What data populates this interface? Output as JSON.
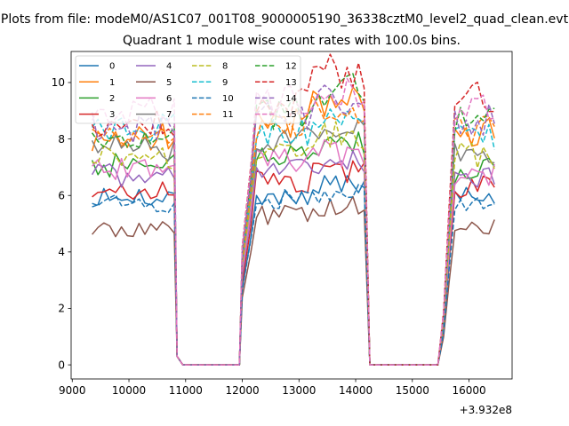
{
  "chart_data": {
    "type": "line",
    "suptitle": "Plots from file: modeM0/AS1C07_001T08_9000005190_36338cztM0_level2_quad_clean.evt",
    "title": "Quadrant 1 module wise count rates with 100.0s bins.",
    "xlabel": "",
    "ylabel": "",
    "x_offset_label": "+3.932e8",
    "x_offset": 393200000,
    "xlim": [
      8980,
      16760
    ],
    "ylim": [
      -0.5,
      11.1
    ],
    "xticks": [
      9000,
      10000,
      11000,
      12000,
      13000,
      14000,
      15000,
      16000
    ],
    "yticks": [
      0,
      2,
      4,
      6,
      8,
      10
    ],
    "legend_position": "upper-left",
    "segments": [
      {
        "start": 9350,
        "end": 10800,
        "count": 15
      },
      {
        "start": 10850,
        "end": 10950,
        "count": 2,
        "fixed": [
          0.3,
          0
        ]
      },
      {
        "start": 11050,
        "end": 11950,
        "count": 10,
        "fixed": "zero"
      },
      {
        "start": 12000,
        "end": 12150,
        "count": 2,
        "ramp": [
          0.45,
          0.75
        ]
      },
      {
        "start": 12250,
        "end": 14150,
        "count": 20
      },
      {
        "start": 14250,
        "end": 15450,
        "count": 13,
        "fixed": "zero"
      },
      {
        "start": 15550,
        "end": 15650,
        "count": 2,
        "ramp": [
          0.2,
          0.6
        ]
      },
      {
        "start": 15750,
        "end": 16450,
        "count": 8
      }
    ],
    "series": [
      {
        "name": "0",
        "color": "#1f77b4",
        "dash": "solid",
        "levels": [
          5.9,
          6.0,
          6.4,
          6.1
        ]
      },
      {
        "name": "1",
        "color": "#ff7f0e",
        "dash": "solid",
        "levels": [
          8.1,
          8.6,
          9.3,
          8.2
        ]
      },
      {
        "name": "2",
        "color": "#2ca02c",
        "dash": "solid",
        "levels": [
          7.1,
          7.4,
          7.8,
          6.9
        ]
      },
      {
        "name": "3",
        "color": "#d62728",
        "dash": "solid",
        "levels": [
          6.1,
          6.5,
          6.8,
          6.3
        ]
      },
      {
        "name": "4",
        "color": "#9467bd",
        "dash": "solid",
        "levels": [
          6.7,
          7.0,
          7.2,
          6.6
        ]
      },
      {
        "name": "5",
        "color": "#8c564b",
        "dash": "solid",
        "levels": [
          4.8,
          5.3,
          5.6,
          4.9
        ]
      },
      {
        "name": "6",
        "color": "#e377c2",
        "dash": "solid",
        "levels": [
          6.9,
          7.3,
          7.5,
          6.8
        ]
      },
      {
        "name": "7",
        "color": "#7f7f7f",
        "dash": "solid",
        "levels": [
          7.7,
          8.0,
          8.4,
          7.6
        ]
      },
      {
        "name": "8",
        "color": "#bcbd22",
        "dash": "dashed",
        "levels": [
          7.3,
          7.8,
          8.1,
          7.4
        ]
      },
      {
        "name": "9",
        "color": "#17becf",
        "dash": "dashed",
        "levels": [
          8.4,
          8.3,
          8.8,
          8.1
        ]
      },
      {
        "name": "10",
        "color": "#1f77b4",
        "dash": "dashed",
        "levels": [
          5.7,
          5.9,
          6.1,
          5.7
        ]
      },
      {
        "name": "11",
        "color": "#ff7f0e",
        "dash": "dashed",
        "levels": [
          7.9,
          8.4,
          9.0,
          8.3
        ]
      },
      {
        "name": "12",
        "color": "#2ca02c",
        "dash": "dashed",
        "levels": [
          8.2,
          8.9,
          9.7,
          8.6
        ]
      },
      {
        "name": "13",
        "color": "#d62728",
        "dash": "dashed",
        "levels": [
          8.6,
          9.4,
          10.4,
          9.4
        ]
      },
      {
        "name": "14",
        "color": "#9467bd",
        "dash": "dashed",
        "levels": [
          8.4,
          8.8,
          9.4,
          8.7
        ]
      },
      {
        "name": "15",
        "color": "#e377c2",
        "dash": "dashed",
        "levels": [
          9.0,
          9.3,
          9.6,
          9.0
        ]
      }
    ]
  }
}
